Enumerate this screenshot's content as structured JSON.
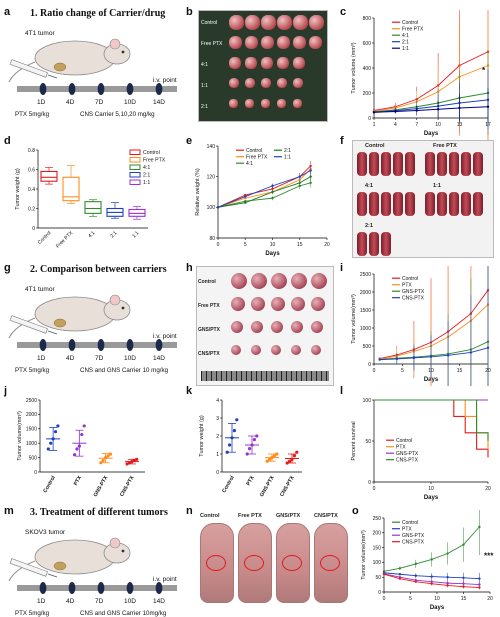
{
  "panel_letters": [
    "a",
    "b",
    "c",
    "d",
    "e",
    "f",
    "g",
    "h",
    "i",
    "j",
    "k",
    "l",
    "m",
    "n",
    "o"
  ],
  "section_titles": {
    "s1": "1. Ratio change of Carrier/drug",
    "s2": "2. Comparison between carriers",
    "s3": "3. Treatment of different tumors"
  },
  "schemes": {
    "s1": {
      "tumor": "4T1 tumor",
      "iv": "i.v. point",
      "days": [
        "1D",
        "4D",
        "7D",
        "10D",
        "14D"
      ],
      "dose_left": "PTX 5mg/kg",
      "dose_right": "CNS Carrier 5,10,20 mg/kg"
    },
    "s2": {
      "tumor": "4T1 tumor",
      "iv": "i.v. point",
      "days": [
        "1D",
        "4D",
        "7D",
        "10D",
        "14D"
      ],
      "dose_left": "PTX 5mg/kg",
      "dose_right": "CNS and GNS Carrier 10 mg/kg"
    },
    "s3": {
      "tumor": "SKOV3 tumor",
      "iv": "i.v. point",
      "days": [
        "1D",
        "4D",
        "7D",
        "10D",
        "14D"
      ],
      "dose_left": "PTX 5mg/kg",
      "dose_right": "CNS and GNS Carrier 10mg/kg"
    }
  },
  "photo_labels": {
    "b": [
      "Control",
      "Free PTX",
      "4:1",
      "1:1",
      "2:1"
    ],
    "f": [
      "Control",
      "Free PTX",
      "4:1",
      "1:1",
      "2:1"
    ],
    "h": [
      "Control",
      "Free PTX",
      "GNS/PTX",
      "CNS/PTX"
    ],
    "n": [
      "Control",
      "Free PTX",
      "GNS/PTX",
      "CNS/PTX"
    ]
  },
  "colors": {
    "red": "#e41a1c",
    "orange": "#ff8c1a",
    "green": "#2e8b2e",
    "blue": "#1f3fbf",
    "purple": "#9933cc",
    "darkgreen": "#1a7a1a"
  },
  "chart_data": [
    {
      "panel": "c",
      "type": "line",
      "xlabel": "Days",
      "ylabel": "Tumor volume (mm³)",
      "x": [
        1,
        4,
        7,
        10,
        13,
        17
      ],
      "xticks": [
        1,
        4,
        7,
        10,
        13,
        17
      ],
      "ylim": [
        0,
        800
      ],
      "yticks": [
        0,
        200,
        400,
        600,
        800
      ],
      "annotation": "*",
      "series": [
        {
          "name": "Control",
          "color": "#e41a1c",
          "values": [
            60,
            90,
            150,
            260,
            420,
            530
          ]
        },
        {
          "name": "Free PTX",
          "color": "#ff8c1a",
          "values": [
            55,
            80,
            130,
            210,
            330,
            420
          ]
        },
        {
          "name": "4:1",
          "color": "#2e8b2e",
          "values": [
            50,
            65,
            90,
            120,
            160,
            200
          ]
        },
        {
          "name": "2:1",
          "color": "#1f3fbf",
          "values": [
            48,
            58,
            75,
            95,
            120,
            145
          ]
        },
        {
          "name": "1:1",
          "color": "#000080",
          "values": [
            45,
            52,
            60,
            70,
            80,
            90
          ]
        }
      ]
    },
    {
      "panel": "d",
      "type": "box",
      "xlabel": "",
      "ylabel": "Tumor weight (g)",
      "categories": [
        "Control",
        "Free PTX",
        "4:1",
        "2:1",
        "1:1"
      ],
      "ylim": [
        0,
        0.8
      ],
      "yticks": [
        0.0,
        0.2,
        0.4,
        0.6,
        0.8
      ],
      "legend": [
        "Control",
        "Free PTX",
        "4:1",
        "2:1",
        "1:1"
      ],
      "boxes": [
        {
          "color": "#e41a1c",
          "min": 0.45,
          "q1": 0.48,
          "median": 0.52,
          "q3": 0.58,
          "max": 0.62
        },
        {
          "color": "#ff8c1a",
          "min": 0.25,
          "q1": 0.28,
          "median": 0.32,
          "q3": 0.52,
          "max": 0.64
        },
        {
          "color": "#2e8b2e",
          "min": 0.12,
          "q1": 0.15,
          "median": 0.2,
          "q3": 0.27,
          "max": 0.29
        },
        {
          "color": "#1f3fbf",
          "min": 0.1,
          "q1": 0.12,
          "median": 0.16,
          "q3": 0.2,
          "max": 0.26
        },
        {
          "color": "#9933cc",
          "min": 0.09,
          "q1": 0.12,
          "median": 0.15,
          "q3": 0.19,
          "max": 0.22
        }
      ]
    },
    {
      "panel": "e",
      "type": "line",
      "xlabel": "Days",
      "ylabel": "Relative weight (%)",
      "x": [
        0,
        5,
        10,
        15,
        17
      ],
      "xticks": [
        0,
        5,
        10,
        15,
        20
      ],
      "ylim": [
        80,
        140
      ],
      "yticks": [
        80,
        100,
        120,
        140
      ],
      "series": [
        {
          "name": "Control",
          "color": "#e41a1c",
          "values": [
            100,
            108,
            112,
            120,
            127
          ]
        },
        {
          "name": "Free PTX",
          "color": "#ff8c1a",
          "values": [
            100,
            106,
            110,
            118,
            125
          ]
        },
        {
          "name": "4:1",
          "color": "#2e8b2e",
          "values": [
            100,
            104,
            106,
            114,
            116
          ]
        },
        {
          "name": "2:1",
          "color": "#1a7a1a",
          "values": [
            100,
            103,
            110,
            116,
            120
          ]
        },
        {
          "name": "1:1",
          "color": "#1f3fbf",
          "values": [
            100,
            107,
            114,
            120,
            124
          ]
        }
      ]
    },
    {
      "panel": "i",
      "type": "line",
      "xlabel": "Days",
      "ylabel": "Tumor volume(mm³)",
      "x": [
        1,
        4,
        7,
        10,
        13,
        17,
        20
      ],
      "xticks": [
        0,
        5,
        10,
        15,
        20
      ],
      "ylim": [
        0,
        2500
      ],
      "yticks": [
        0,
        500,
        1000,
        1500,
        2000,
        2500
      ],
      "series": [
        {
          "name": "Control",
          "color": "#e41a1c",
          "values": [
            150,
            250,
            400,
            600,
            900,
            1400,
            2050
          ]
        },
        {
          "name": "PTX",
          "color": "#ff8c1a",
          "values": [
            140,
            220,
            350,
            500,
            750,
            1200,
            1650
          ]
        },
        {
          "name": "GNS-PTX",
          "color": "#2e8b2e",
          "values": [
            130,
            160,
            190,
            230,
            280,
            400,
            620
          ]
        },
        {
          "name": "CNS-PTX",
          "color": "#1f3fbf",
          "values": [
            120,
            140,
            170,
            200,
            240,
            320,
            450
          ]
        }
      ]
    },
    {
      "panel": "j",
      "type": "scatter",
      "xlabel": "",
      "ylabel": "Tumor volume(mm³)",
      "categories": [
        "Control",
        "PTX",
        "GNS-PTX",
        "CNS-PTX"
      ],
      "ylim": [
        0,
        2500
      ],
      "yticks": [
        0,
        500,
        1000,
        1500,
        2000,
        2500
      ],
      "groups": [
        {
          "color": "#1f3fbf",
          "mean": 1150,
          "sd": 400,
          "points": [
            800,
            1000,
            1150,
            1400,
            1600
          ]
        },
        {
          "color": "#9933cc",
          "mean": 1000,
          "sd": 450,
          "points": [
            600,
            800,
            900,
            1300,
            1600
          ]
        },
        {
          "color": "#ff8c1a",
          "mean": 480,
          "sd": 160,
          "points": [
            320,
            400,
            500,
            560,
            620
          ]
        },
        {
          "color": "#e41a1c",
          "mean": 360,
          "sd": 80,
          "points": [
            280,
            320,
            360,
            400,
            440
          ]
        }
      ]
    },
    {
      "panel": "k",
      "type": "scatter",
      "xlabel": "",
      "ylabel": "Tumor weight (g)",
      "categories": [
        "Control",
        "PTX",
        "GNS-PTX",
        "CNS-PTX"
      ],
      "ylim": [
        0,
        4
      ],
      "yticks": [
        0,
        1,
        2,
        3,
        4
      ],
      "groups": [
        {
          "color": "#1f3fbf",
          "mean": 1.9,
          "sd": 0.8,
          "points": [
            1.1,
            1.5,
            1.9,
            2.3,
            2.9
          ]
        },
        {
          "color": "#9933cc",
          "mean": 1.5,
          "sd": 0.5,
          "points": [
            1.0,
            1.3,
            1.5,
            1.8,
            2.0
          ]
        },
        {
          "color": "#ff8c1a",
          "mean": 0.8,
          "sd": 0.2,
          "points": [
            0.6,
            0.7,
            0.8,
            0.9,
            1.0
          ]
        },
        {
          "color": "#e41a1c",
          "mean": 0.75,
          "sd": 0.25,
          "points": [
            0.5,
            0.6,
            0.7,
            0.9,
            1.1
          ]
        }
      ]
    },
    {
      "panel": "l",
      "type": "line",
      "xlabel": "Days",
      "ylabel": "Percent survival",
      "x": [
        0,
        10,
        14,
        16,
        18,
        20
      ],
      "xticks": [
        0,
        10,
        20
      ],
      "ylim": [
        0,
        100
      ],
      "yticks": [
        0,
        50,
        100
      ],
      "series": [
        {
          "name": "Control",
          "color": "#e41a1c",
          "values": [
            100,
            100,
            80,
            60,
            40,
            30
          ]
        },
        {
          "name": "PTX",
          "color": "#ff8c1a",
          "values": [
            100,
            100,
            100,
            80,
            60,
            40
          ]
        },
        {
          "name": "GNS-PTX",
          "color": "#9933cc",
          "values": [
            100,
            100,
            100,
            100,
            100,
            100
          ]
        },
        {
          "name": "CNS-PTX",
          "color": "#2e8b2e",
          "values": [
            100,
            100,
            100,
            100,
            60,
            50
          ]
        }
      ]
    },
    {
      "panel": "o",
      "type": "line",
      "xlabel": "Days",
      "ylabel": "Tumor volume(mm³)",
      "x": [
        0,
        3,
        6,
        9,
        12,
        15,
        18
      ],
      "xticks": [
        0,
        5,
        10,
        15,
        20
      ],
      "ylim": [
        0,
        250
      ],
      "yticks": [
        0,
        50,
        100,
        150,
        200,
        250
      ],
      "annotation": "***",
      "series": [
        {
          "name": "Control",
          "color": "#2e8b2e",
          "values": [
            70,
            80,
            95,
            110,
            130,
            160,
            220
          ]
        },
        {
          "name": "PTX",
          "color": "#1f3fbf",
          "values": [
            65,
            60,
            55,
            52,
            50,
            48,
            45
          ]
        },
        {
          "name": "GNS-PTX",
          "color": "#9933cc",
          "values": [
            62,
            50,
            40,
            35,
            30,
            28,
            25
          ]
        },
        {
          "name": "CNS-PTX",
          "color": "#e41a1c",
          "values": [
            60,
            45,
            35,
            28,
            22,
            18,
            15
          ]
        }
      ]
    }
  ]
}
